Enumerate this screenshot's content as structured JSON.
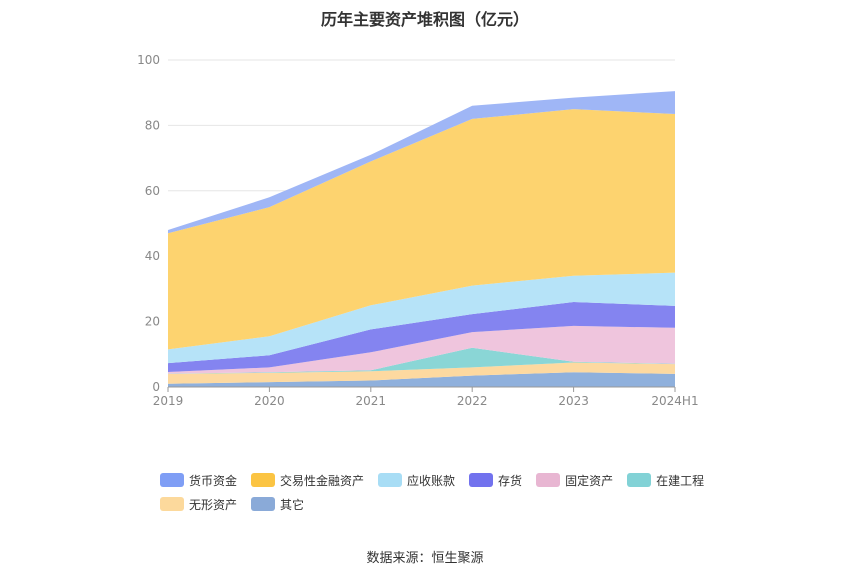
{
  "chart_data": {
    "type": "area",
    "stacked": true,
    "title": "历年主要资产堆积图（亿元）",
    "x": [
      "2019",
      "2020",
      "2021",
      "2022",
      "2023",
      "2024H1"
    ],
    "ylim": [
      0,
      100
    ],
    "yticks": [
      0,
      20,
      40,
      60,
      80,
      100
    ],
    "grid": true,
    "legend_position": "bottom",
    "series": [
      {
        "name": "其它",
        "color": "#8fb0dc",
        "values": [
          1.0,
          1.5,
          2.0,
          3.5,
          4.5,
          4.0
        ]
      },
      {
        "name": "无形资产",
        "color": "#fdd9a0",
        "values": [
          3.0,
          2.8,
          2.8,
          2.5,
          3.0,
          3.0
        ]
      },
      {
        "name": "在建工程",
        "color": "#8ad6d6",
        "values": [
          0.1,
          0.2,
          0.3,
          6.0,
          0.2,
          0.1
        ]
      },
      {
        "name": "固定资产",
        "color": "#efc5dd",
        "values": [
          0.5,
          1.5,
          5.5,
          4.8,
          11.0,
          11.0
        ]
      },
      {
        "name": "存货",
        "color": "#8484f0",
        "values": [
          2.7,
          3.7,
          7.0,
          5.5,
          7.3,
          6.7
        ]
      },
      {
        "name": "应收账款",
        "color": "#b6e3f8",
        "values": [
          4.2,
          5.8,
          7.4,
          8.7,
          8.0,
          10.2
        ]
      },
      {
        "name": "交易性金融资产",
        "color": "#fdd36f",
        "values": [
          35.5,
          39.5,
          44.0,
          51.0,
          51.0,
          48.5
        ]
      },
      {
        "name": "货币资金",
        "color": "#9fb6f6",
        "values": [
          1.0,
          3.0,
          2.0,
          4.0,
          3.5,
          7.0
        ]
      }
    ],
    "legend": [
      {
        "name": "货币资金",
        "color": "#7f9ef5"
      },
      {
        "name": "交易性金融资产",
        "color": "#fbc443"
      },
      {
        "name": "应收账款",
        "color": "#a8ddf5"
      },
      {
        "name": "存货",
        "color": "#7272ee"
      },
      {
        "name": "固定资产",
        "color": "#e8b6d2"
      },
      {
        "name": "在建工程",
        "color": "#82d2d6"
      },
      {
        "name": "无形资产",
        "color": "#fcd99c"
      },
      {
        "name": "其它",
        "color": "#8aaad8"
      }
    ]
  },
  "source": "数据来源：恒生聚源"
}
